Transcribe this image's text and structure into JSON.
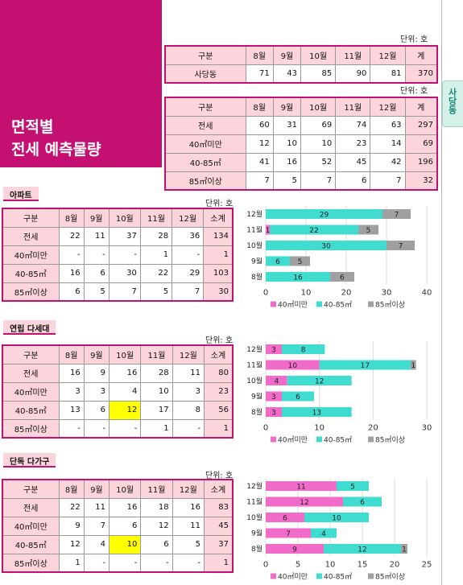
{
  "title": {
    "line1": "면적별",
    "line2": "전세 예측물량"
  },
  "side_tab": "사당동",
  "unit_label": "단위: 호",
  "months": [
    "8월",
    "9월",
    "10월",
    "11월",
    "12월",
    "계"
  ],
  "top_table1": {
    "header": "구분",
    "rows": [
      {
        "label": "사당동",
        "values": [
          "71",
          "43",
          "85",
          "90",
          "81",
          "370"
        ]
      }
    ]
  },
  "top_table2": {
    "header": "구분",
    "rows": [
      {
        "label": "전세",
        "values": [
          "60",
          "31",
          "69",
          "74",
          "63",
          "297"
        ]
      },
      {
        "label": "40㎡미만",
        "values": [
          "12",
          "10",
          "10",
          "23",
          "14",
          "69"
        ]
      },
      {
        "label": "40-85㎡",
        "values": [
          "41",
          "16",
          "52",
          "45",
          "42",
          "196"
        ]
      },
      {
        "label": "85㎡이상",
        "values": [
          "7",
          "5",
          "7",
          "6",
          "7",
          "32"
        ]
      }
    ]
  },
  "sections": [
    {
      "label": "아파트",
      "unit": "단위: 호",
      "header": [
        "구분",
        "8월",
        "9월",
        "10월",
        "11월",
        "12월",
        "소계"
      ],
      "rows": [
        {
          "label": "전세",
          "values": [
            "22",
            "11",
            "37",
            "28",
            "36",
            "134"
          ]
        },
        {
          "label": "40㎡미만",
          "values": [
            "-",
            "-",
            "-",
            "1",
            "-",
            "1"
          ]
        },
        {
          "label": "40-85㎡",
          "values": [
            "16",
            "6",
            "30",
            "22",
            "29",
            "103"
          ]
        },
        {
          "label": "85㎡이상",
          "values": [
            "6",
            "5",
            "7",
            "5",
            "7",
            "30"
          ]
        }
      ],
      "highlight": null
    },
    {
      "label": "연립 다세대",
      "unit": "단위: 호",
      "header": [
        "구분",
        "8월",
        "9월",
        "10월",
        "11월",
        "12월",
        "소계"
      ],
      "rows": [
        {
          "label": "전세",
          "values": [
            "16",
            "9",
            "16",
            "28",
            "11",
            "80"
          ]
        },
        {
          "label": "40㎡미만",
          "values": [
            "3",
            "3",
            "4",
            "10",
            "3",
            "23"
          ]
        },
        {
          "label": "40-85㎡",
          "values": [
            "13",
            "6",
            "12",
            "17",
            "8",
            "56"
          ]
        },
        {
          "label": "85㎡이상",
          "values": [
            "-",
            "-",
            "-",
            "1",
            "-",
            "1"
          ]
        }
      ],
      "highlight": [
        2,
        2
      ]
    },
    {
      "label": "단독 다가구",
      "unit": "단위: 호",
      "header": [
        "구분",
        "8월",
        "9월",
        "10월",
        "11월",
        "12월",
        "소계"
      ],
      "rows": [
        {
          "label": "전세",
          "values": [
            "22",
            "11",
            "16",
            "18",
            "16",
            "83"
          ]
        },
        {
          "label": "40㎡미만",
          "values": [
            "9",
            "7",
            "6",
            "12",
            "11",
            "45"
          ]
        },
        {
          "label": "40-85㎡",
          "values": [
            "12",
            "4",
            "10",
            "6",
            "5",
            "37"
          ]
        },
        {
          "label": "85㎡이상",
          "values": [
            "1",
            "-",
            "-",
            "-",
            "-",
            "1"
          ]
        }
      ],
      "highlight": [
        2,
        2
      ]
    }
  ],
  "chart_data": [
    {
      "type": "bar",
      "orientation": "horizontal",
      "stacked": true,
      "categories": [
        "12월",
        "11월",
        "10월",
        "9월",
        "8월"
      ],
      "series": [
        {
          "name": "40㎡미만",
          "values": [
            0,
            1,
            0,
            0,
            0
          ],
          "color": "#f06cc8"
        },
        {
          "name": "40-85㎡",
          "values": [
            29,
            22,
            30,
            6,
            16
          ],
          "color": "#40dcd0"
        },
        {
          "name": "85㎡이상",
          "values": [
            7,
            5,
            7,
            5,
            6
          ],
          "color": "#a0a0a0"
        }
      ],
      "xlim": [
        0,
        40
      ],
      "xticks": [
        0,
        10,
        20,
        30,
        40
      ],
      "legend": "bottom"
    },
    {
      "type": "bar",
      "orientation": "horizontal",
      "stacked": true,
      "categories": [
        "12월",
        "11월",
        "10월",
        "9월",
        "8월"
      ],
      "series": [
        {
          "name": "40㎡미만",
          "values": [
            3,
            10,
            4,
            3,
            3
          ],
          "color": "#f06cc8"
        },
        {
          "name": "40-85㎡",
          "values": [
            8,
            17,
            12,
            6,
            13
          ],
          "color": "#40dcd0"
        },
        {
          "name": "85㎡이상",
          "values": [
            0,
            1,
            0,
            0,
            0
          ],
          "color": "#a0a0a0"
        }
      ],
      "xlim": [
        0,
        30
      ],
      "xticks": [
        0,
        10,
        20,
        30
      ],
      "legend": "bottom"
    },
    {
      "type": "bar",
      "orientation": "horizontal",
      "stacked": true,
      "categories": [
        "12월",
        "11월",
        "10월",
        "9월",
        "8월"
      ],
      "series": [
        {
          "name": "40㎡미만",
          "values": [
            11,
            12,
            6,
            7,
            9
          ],
          "color": "#f06cc8"
        },
        {
          "name": "40-85㎡",
          "values": [
            5,
            6,
            10,
            4,
            12
          ],
          "color": "#40dcd0"
        },
        {
          "name": "85㎡이상",
          "values": [
            0,
            0,
            0,
            0,
            1
          ],
          "color": "#a0a0a0"
        }
      ],
      "xlim": [
        0,
        25
      ],
      "xticks": [
        0,
        5,
        10,
        15,
        20,
        25
      ],
      "legend": "bottom"
    }
  ]
}
